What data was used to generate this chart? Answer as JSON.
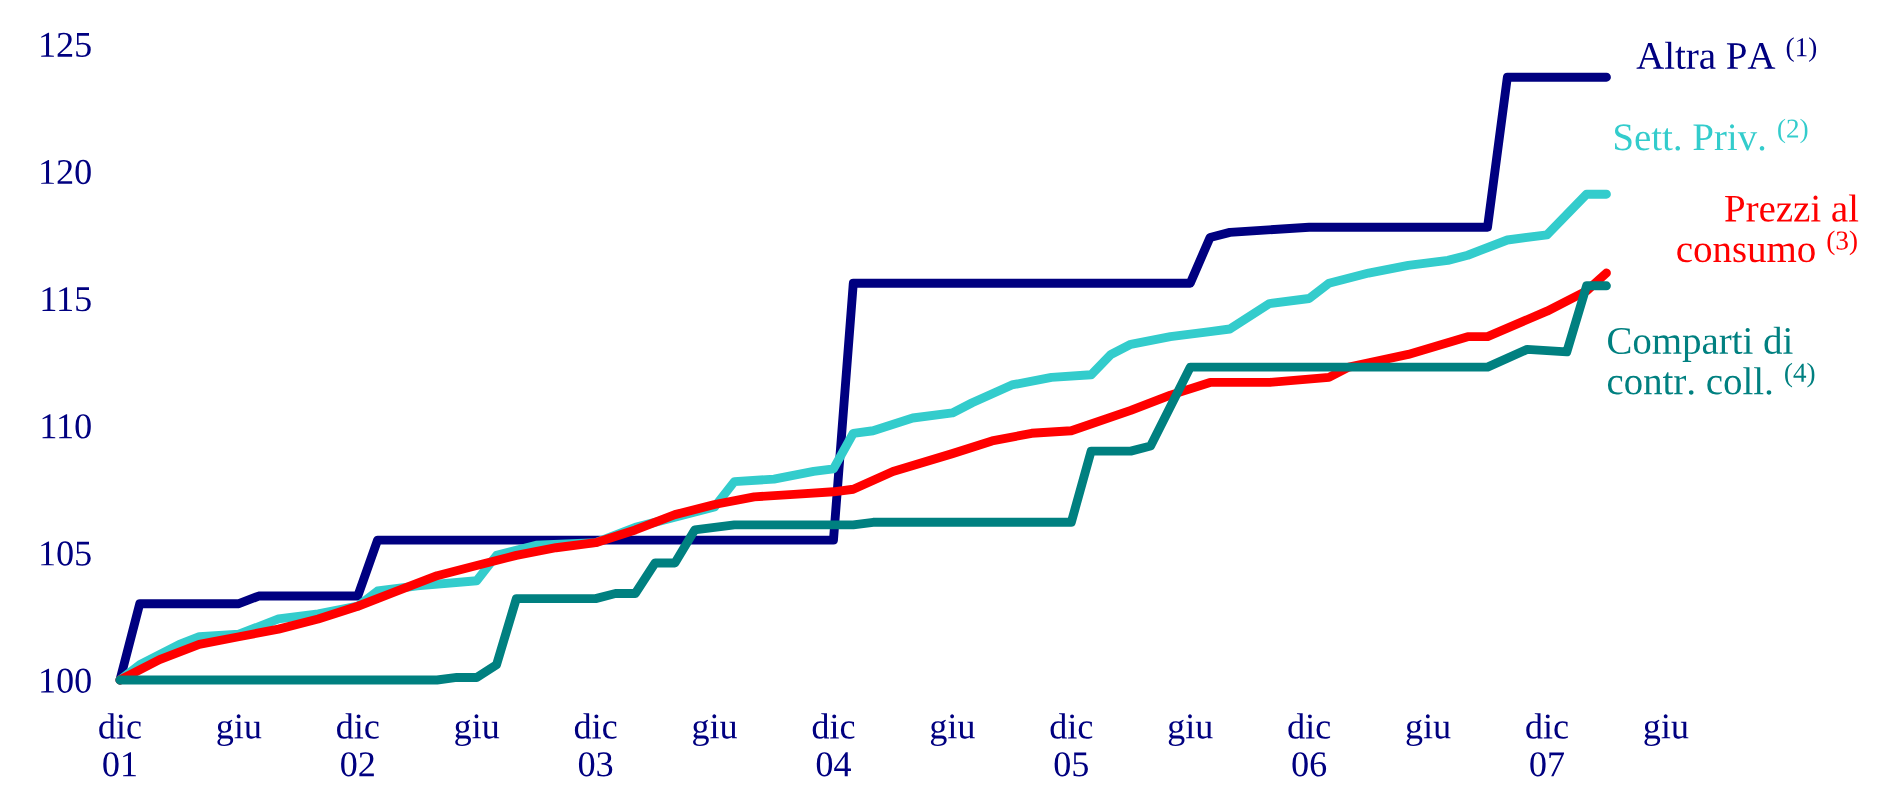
{
  "chart_data": {
    "type": "line",
    "xlim": [
      "2001-12",
      "2008-06"
    ],
    "ylim": [
      100,
      125
    ],
    "xticks": [
      {
        "value": "2001-12",
        "label": "dic\n01"
      },
      {
        "value": "2002-06",
        "label": "giu"
      },
      {
        "value": "2002-12",
        "label": "dic\n02"
      },
      {
        "value": "2003-06",
        "label": "giu"
      },
      {
        "value": "2003-12",
        "label": "dic\n03"
      },
      {
        "value": "2004-06",
        "label": "giu"
      },
      {
        "value": "2004-12",
        "label": "dic\n04"
      },
      {
        "value": "2005-06",
        "label": "giu"
      },
      {
        "value": "2005-12",
        "label": "dic\n05"
      },
      {
        "value": "2006-06",
        "label": "giu"
      },
      {
        "value": "2006-12",
        "label": "dic\n06"
      },
      {
        "value": "2007-06",
        "label": "giu"
      },
      {
        "value": "2007-12",
        "label": "dic\n07"
      },
      {
        "value": "2008-06",
        "label": "giu"
      }
    ],
    "yticks": [
      100,
      105,
      110,
      115,
      120,
      125
    ],
    "grid": false,
    "legend": false,
    "marker": "none",
    "line_style": "solid",
    "series": [
      {
        "name": "Altra PA $^{(1)}$",
        "color": "#000080",
        "x": [
          "2001-12",
          "2002-01",
          "2002-06",
          "2002-07",
          "2002-12",
          "2003-01",
          "2004-12",
          "2005-01",
          "2006-06",
          "2006-07",
          "2006-08",
          "2006-12",
          "2007-09",
          "2007-10",
          "2008-03"
        ],
        "values": [
          100,
          103.0,
          103.0,
          103.3,
          103.3,
          105.5,
          105.5,
          115.6,
          115.6,
          117.4,
          117.6,
          117.8,
          117.8,
          123.7,
          123.7
        ]
      },
      {
        "name": "Sett. Priv. $^{(2)}$",
        "color": "#33cccc",
        "x": [
          "2001-12",
          "2002-01",
          "2002-03",
          "2002-04",
          "2002-06",
          "2002-08",
          "2002-10",
          "2002-12",
          "2003-01",
          "2003-03",
          "2003-06",
          "2003-07",
          "2003-09",
          "2003-12",
          "2004-02",
          "2004-06",
          "2004-07",
          "2004-09",
          "2004-11",
          "2004-12",
          "2005-01",
          "2005-02",
          "2005-04",
          "2005-06",
          "2005-07",
          "2005-09",
          "2005-11",
          "2006-01",
          "2006-02",
          "2006-03",
          "2006-05",
          "2006-07",
          "2006-08",
          "2006-10",
          "2006-12",
          "2007-01",
          "2007-03",
          "2007-05",
          "2007-07",
          "2007-08",
          "2007-10",
          "2007-12",
          "2008-02",
          "2008-03"
        ],
        "values": [
          100,
          100.6,
          101.4,
          101.7,
          101.8,
          102.4,
          102.6,
          102.9,
          103.5,
          103.7,
          103.9,
          104.9,
          105.3,
          105.4,
          106.0,
          106.8,
          107.8,
          107.9,
          108.2,
          108.3,
          109.7,
          109.8,
          110.3,
          110.5,
          110.9,
          111.6,
          111.9,
          112.0,
          112.8,
          113.2,
          113.5,
          113.7,
          113.8,
          114.8,
          115.0,
          115.6,
          116.0,
          116.3,
          116.5,
          116.7,
          117.3,
          117.5,
          119.1,
          119.1
        ]
      },
      {
        "name": "Prezzi al\nconsumo $^{(3)}$",
        "color": "#ff0000",
        "x": [
          "2001-12",
          "2002-02",
          "2002-04",
          "2002-06",
          "2002-08",
          "2002-10",
          "2002-12",
          "2003-02",
          "2003-04",
          "2003-06",
          "2003-08",
          "2003-10",
          "2003-12",
          "2004-02",
          "2004-04",
          "2004-06",
          "2004-08",
          "2004-10",
          "2004-12",
          "2005-01",
          "2005-03",
          "2005-06",
          "2005-08",
          "2005-10",
          "2005-12",
          "2006-03",
          "2006-05",
          "2006-07",
          "2006-10",
          "2007-01",
          "2007-02",
          "2007-05",
          "2007-08",
          "2007-09",
          "2007-12",
          "2008-02",
          "2008-03"
        ],
        "values": [
          100,
          100.8,
          101.4,
          101.7,
          102.0,
          102.4,
          102.9,
          103.5,
          104.1,
          104.5,
          104.9,
          105.2,
          105.4,
          105.9,
          106.5,
          106.9,
          107.2,
          107.3,
          107.4,
          107.5,
          108.2,
          108.9,
          109.4,
          109.7,
          109.8,
          110.6,
          111.2,
          111.7,
          111.7,
          111.9,
          112.3,
          112.8,
          113.5,
          113.5,
          114.5,
          115.3,
          116.0
        ]
      },
      {
        "name": "Comparti di\ncontr. coll. $^{(4)}$",
        "color": "#008080",
        "x": [
          "2001-12",
          "2003-04",
          "2003-05",
          "2003-06",
          "2003-07",
          "2003-08",
          "2003-12",
          "2004-01",
          "2004-02",
          "2004-03",
          "2004-04",
          "2004-05",
          "2004-07",
          "2005-01",
          "2005-02",
          "2005-12",
          "2006-01",
          "2006-03",
          "2006-04",
          "2006-06",
          "2007-09",
          "2007-11",
          "2008-01",
          "2008-02",
          "2008-03"
        ],
        "values": [
          100,
          100,
          100.1,
          100.1,
          100.6,
          103.2,
          103.2,
          103.4,
          103.4,
          104.6,
          104.6,
          105.9,
          106.1,
          106.1,
          106.2,
          106.2,
          109.0,
          109.0,
          109.2,
          112.3,
          112.3,
          113.0,
          112.9,
          115.5,
          115.5
        ]
      }
    ]
  }
}
